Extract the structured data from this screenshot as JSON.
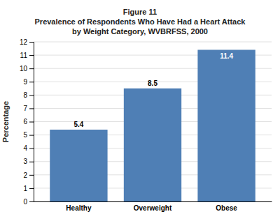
{
  "chart_data": {
    "type": "bar",
    "title": [
      "Figure 11",
      "Prevalence of Respondents Who Have Had a Heart Attack",
      "by Weight Category, WVBRFSS, 2000"
    ],
    "categories": [
      "Healthy",
      "Overweight",
      "Obese"
    ],
    "values": [
      5.4,
      8.5,
      11.4
    ],
    "color": "#4f7fb5",
    "ylabel": "Percentage",
    "ylim": [
      0,
      12
    ],
    "yticks": [
      0,
      1,
      2,
      3,
      4,
      5,
      6,
      7,
      8,
      9,
      10,
      11,
      12
    ],
    "grid": true,
    "data_labels": true
  }
}
